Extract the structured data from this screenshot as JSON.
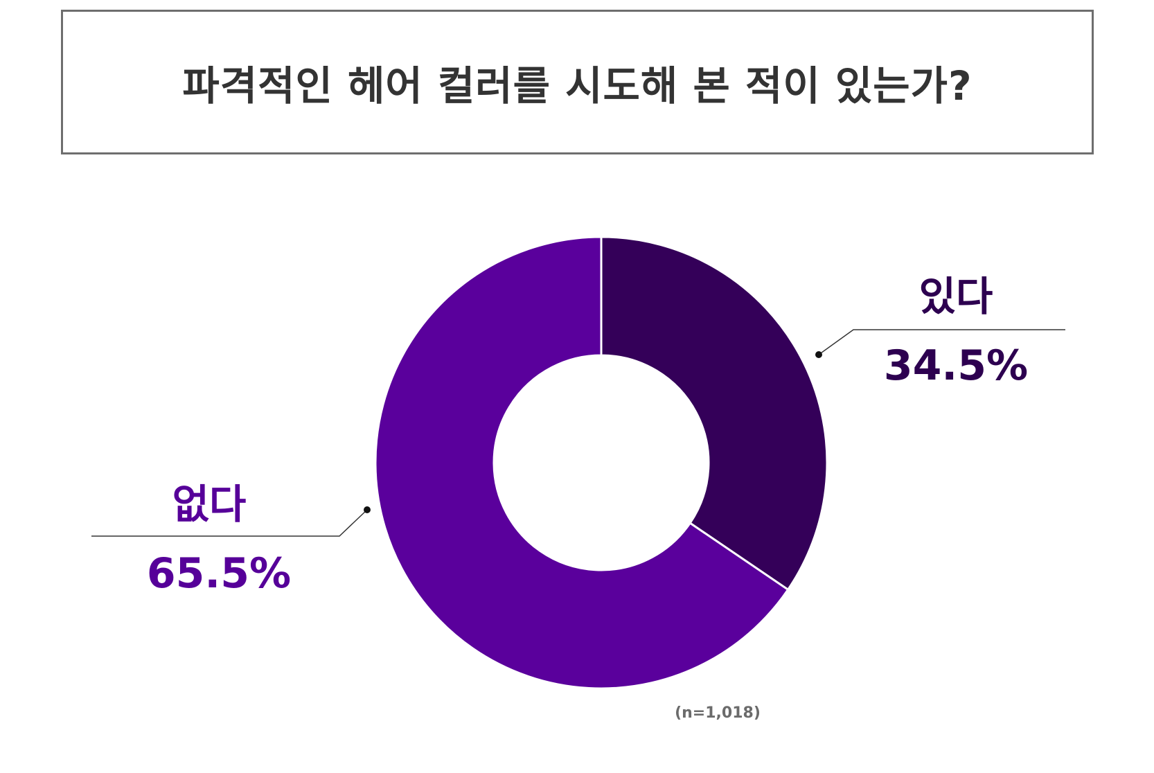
{
  "chart_data": {
    "type": "pie",
    "title": "파격적인 헤어 컬러를 시도해 본 적이 있는가?",
    "categories": [
      "있다",
      "없다"
    ],
    "values": [
      34.5,
      65.5
    ],
    "value_labels": [
      "34.5%",
      "65.5%"
    ],
    "colors": [
      "#340059",
      "#5a009c"
    ],
    "label_colors": [
      "#2d0050",
      "#560099"
    ],
    "note": "(n=1,018)",
    "legend": "none"
  }
}
